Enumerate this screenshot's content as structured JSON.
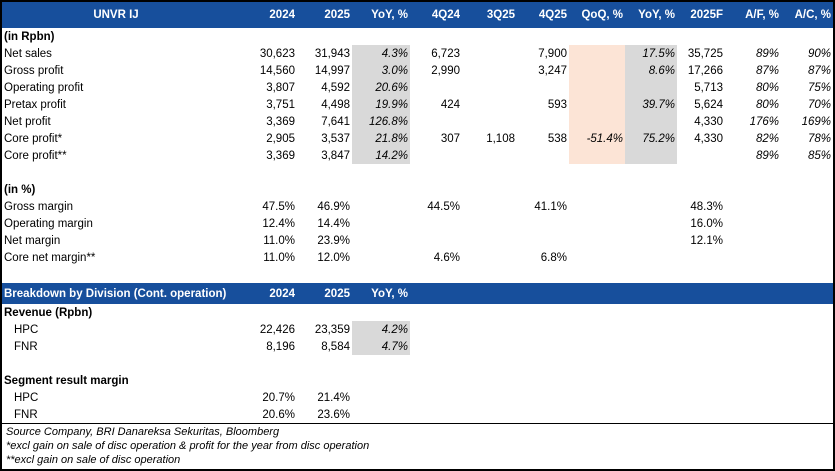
{
  "colors": {
    "header_bg": "#174F9C",
    "header_text": "#FFFFFF",
    "gray_band": "#D9D9D9",
    "peach_band": "#FCE4D6",
    "border": "#000000"
  },
  "table1": {
    "headers": [
      "UNVR IJ",
      "2024",
      "2025",
      "YoY, %",
      "4Q24",
      "3Q25",
      "4Q25",
      "QoQ, %",
      "YoY, %",
      "2025F",
      "A/F, %",
      "A/C, %"
    ],
    "rows": [
      {
        "label": "(in Rpbn)",
        "bold": true,
        "cells": [
          "",
          "",
          "",
          "",
          "",
          "",
          "",
          "",
          "",
          "",
          ""
        ]
      },
      {
        "label": "Net sales",
        "bg": [
          2,
          6,
          7
        ],
        "cells": [
          "30,623",
          "31,943",
          "4.3%",
          "6,723",
          "",
          "7,900",
          "",
          "17.5%",
          "35,725",
          "89%",
          "90%"
        ]
      },
      {
        "label": "Gross profit",
        "bg": [
          2,
          6,
          7
        ],
        "cells": [
          "14,560",
          "14,997",
          "3.0%",
          "2,990",
          "",
          "3,247",
          "",
          "8.6%",
          "17,266",
          "87%",
          "87%"
        ]
      },
      {
        "label": "Operating profit",
        "bg": [
          2,
          6,
          7
        ],
        "cells": [
          "3,807",
          "4,592",
          "20.6%",
          "",
          "",
          "",
          "",
          "",
          "5,713",
          "80%",
          "75%"
        ]
      },
      {
        "label": "Pretax profit",
        "bg": [
          2,
          6,
          7
        ],
        "cells": [
          "3,751",
          "4,498",
          "19.9%",
          "424",
          "",
          "593",
          "",
          "39.7%",
          "5,624",
          "80%",
          "70%"
        ]
      },
      {
        "label": "Net profit",
        "bg": [
          2,
          6,
          7
        ],
        "cells": [
          "3,369",
          "7,641",
          "126.8%",
          "",
          "",
          "",
          "",
          "",
          "4,330",
          "176%",
          "169%"
        ]
      },
      {
        "label": "Core profit*",
        "bg": [
          2,
          6,
          7
        ],
        "cells": [
          "2,905",
          "3,537",
          "21.8%",
          "307",
          "1,108",
          "538",
          "-51.4%",
          "75.2%",
          "4,330",
          "82%",
          "78%"
        ]
      },
      {
        "label": "Core profit**",
        "bg": [
          2,
          6,
          7
        ],
        "cells": [
          "3,369",
          "3,847",
          "14.2%",
          "",
          "",
          "",
          "",
          "",
          "",
          "89%",
          "85%"
        ]
      },
      {
        "blank": true
      },
      {
        "label": "(in %)",
        "bold": true,
        "cells": [
          "",
          "",
          "",
          "",
          "",
          "",
          "",
          "",
          "",
          "",
          ""
        ]
      },
      {
        "label": "Gross margin",
        "cells": [
          "47.5%",
          "46.9%",
          "",
          "44.5%",
          "",
          "41.1%",
          "",
          "",
          "48.3%",
          "",
          ""
        ]
      },
      {
        "label": "Operating margin",
        "cells": [
          "12.4%",
          "14.4%",
          "",
          "",
          "",
          "",
          "",
          "",
          "16.0%",
          "",
          ""
        ]
      },
      {
        "label": "Net margin",
        "cells": [
          "11.0%",
          "23.9%",
          "",
          "",
          "",
          "",
          "",
          "",
          "12.1%",
          "",
          ""
        ]
      },
      {
        "label": "Core net margin**",
        "cells": [
          "11.0%",
          "12.0%",
          "",
          "4.6%",
          "",
          "6.8%",
          "",
          "",
          "",
          "",
          ""
        ]
      },
      {
        "blank": true
      }
    ]
  },
  "table2": {
    "headers": [
      "Breakdown by Division (Cont. operation)",
      "2024",
      "2025",
      "YoY, %",
      "",
      "",
      "",
      "",
      "",
      "",
      "",
      ""
    ],
    "rows": [
      {
        "label": "Revenue (Rpbn)",
        "bold": true,
        "cells": [
          "",
          "",
          "",
          "",
          "",
          "",
          "",
          "",
          "",
          "",
          ""
        ]
      },
      {
        "label": "HPC",
        "indent": true,
        "bg": [
          2
        ],
        "cells": [
          "22,426",
          "23,359",
          "4.2%",
          "",
          "",
          "",
          "",
          "",
          "",
          "",
          ""
        ]
      },
      {
        "label": "FNR",
        "indent": true,
        "bg": [
          2
        ],
        "cells": [
          "8,196",
          "8,584",
          "4.7%",
          "",
          "",
          "",
          "",
          "",
          "",
          "",
          ""
        ]
      },
      {
        "blank": true
      },
      {
        "label": "Segment result margin",
        "bold": true,
        "cells": [
          "",
          "",
          "",
          "",
          "",
          "",
          "",
          "",
          "",
          "",
          ""
        ]
      },
      {
        "label": "HPC",
        "indent": true,
        "cells": [
          "20.7%",
          "21.4%",
          "",
          "",
          "",
          "",
          "",
          "",
          "",
          "",
          ""
        ]
      },
      {
        "label": "FNR",
        "indent": true,
        "cells": [
          "20.6%",
          "23.6%",
          "",
          "",
          "",
          "",
          "",
          "",
          "",
          "",
          ""
        ]
      }
    ]
  },
  "footer": {
    "source": "Source Company, BRI Danareksa Sekuritas, Bloomberg",
    "note1": "*excl gain on sale of disc operation & profit for the year from disc operation",
    "note2": "**excl gain on sale of disc operation"
  }
}
